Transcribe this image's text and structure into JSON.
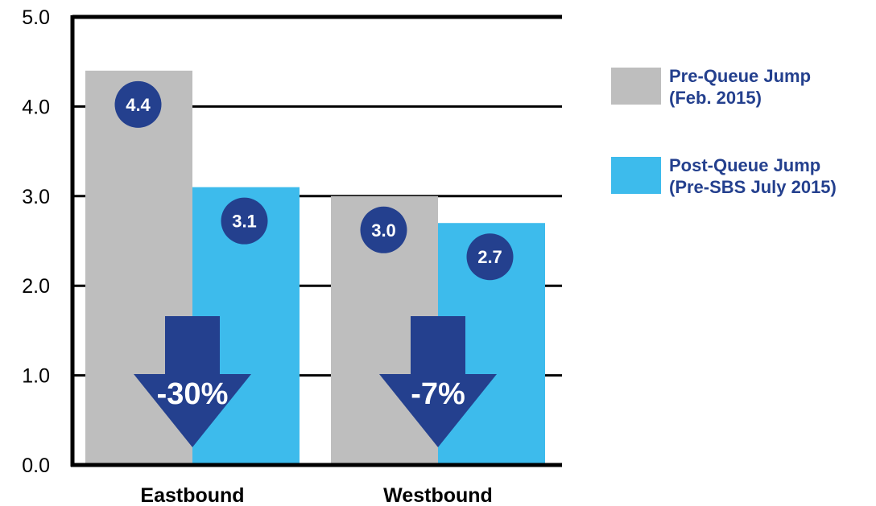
{
  "chart_data": {
    "type": "bar",
    "categories": [
      "Eastbound",
      "Westbound"
    ],
    "series": [
      {
        "name": "Pre-Queue Jump (Feb. 2015)",
        "values": [
          4.4,
          3.0
        ],
        "color": "#bebebe"
      },
      {
        "name": "Post-Queue Jump (Pre-SBS July 2015)",
        "values": [
          3.1,
          2.7
        ],
        "color": "#3dbbec"
      }
    ],
    "data_labels": [
      [
        "4.4",
        "3.0"
      ],
      [
        "3.1",
        "2.7"
      ]
    ],
    "changes": [
      "-30%",
      "-7%"
    ],
    "ylim": [
      0,
      5
    ],
    "y_ticks": [
      "0.0",
      "1.0",
      "2.0",
      "3.0",
      "4.0",
      "5.0"
    ],
    "grid": true,
    "legend_position": "right",
    "legend": [
      {
        "lines": [
          "Pre-Queue Jump",
          "(Feb. 2015)"
        ],
        "color": "#bebebe"
      },
      {
        "lines": [
          "Post-Queue Jump",
          "(Pre-SBS July 2015)"
        ],
        "color": "#3dbbec"
      }
    ],
    "colors": {
      "axis": "#000000",
      "gridline": "#000000",
      "badge": "#24408e",
      "arrow": "#24408e",
      "legend_text": "#24408e"
    }
  }
}
